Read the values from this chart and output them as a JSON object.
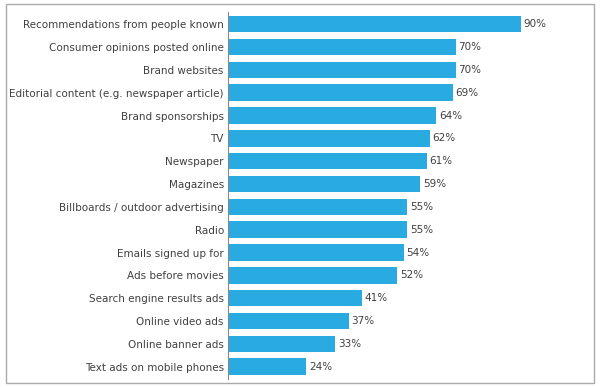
{
  "categories": [
    "Text ads on mobile phones",
    "Online banner ads",
    "Online video ads",
    "Search engine results ads",
    "Ads before movies",
    "Emails signed up for",
    "Radio",
    "Billboards / outdoor advertising",
    "Magazines",
    "Newspaper",
    "TV",
    "Brand sponsorships",
    "Editorial content (e.g. newspaper article)",
    "Brand websites",
    "Consumer opinions posted online",
    "Recommendations from people known"
  ],
  "values": [
    24,
    33,
    37,
    41,
    52,
    54,
    55,
    55,
    59,
    61,
    62,
    64,
    69,
    70,
    70,
    90
  ],
  "bar_color": "#29ABE2",
  "text_color": "#404040",
  "label_color": "#404040",
  "background_color": "#FFFFFF",
  "border_color": "#AAAAAA",
  "xlim": [
    0,
    105
  ],
  "bar_height": 0.72,
  "fontsize_labels": 7.5,
  "fontsize_values": 7.5,
  "figsize": [
    6.0,
    3.87
  ],
  "dpi": 100
}
